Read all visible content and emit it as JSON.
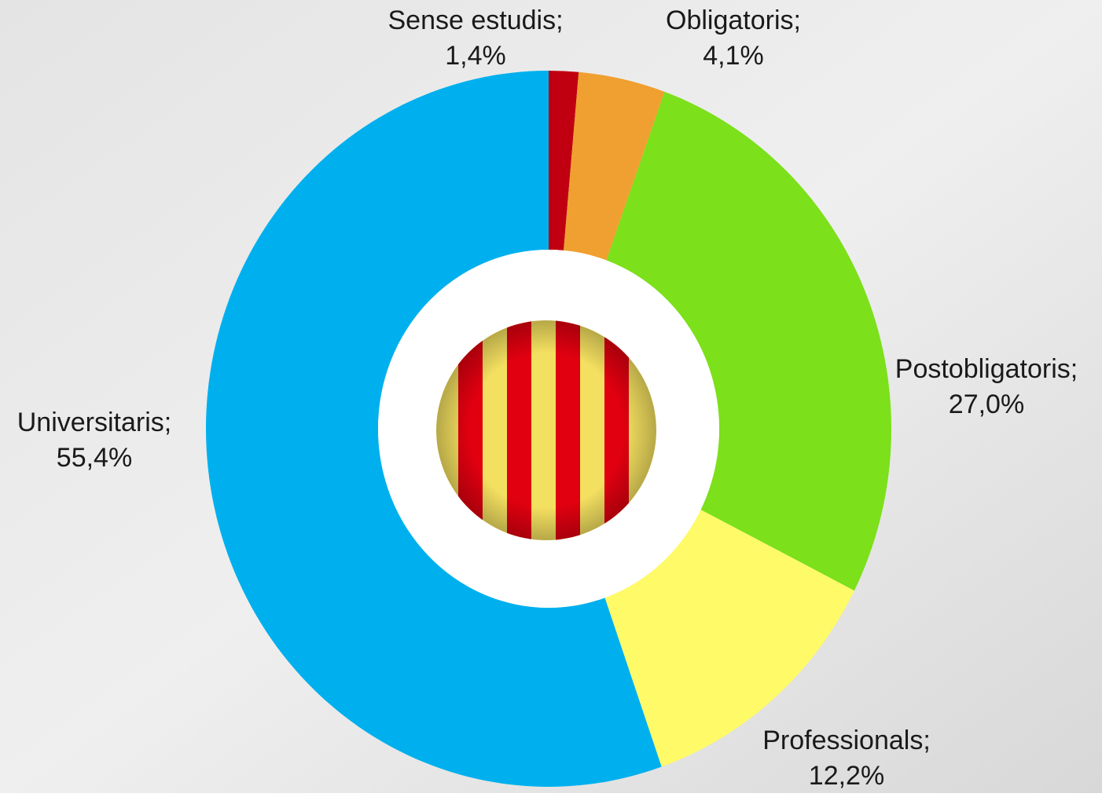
{
  "chart_data": {
    "type": "donut",
    "categories": [
      "Sense estudis;",
      "Obligatoris;",
      "Postobligatoris;",
      "Professionals;",
      "Universitaris;"
    ],
    "values": [
      1.4,
      4.1,
      27.0,
      12.2,
      55.4
    ],
    "value_labels": [
      "1,4%",
      "4,1%",
      "27,0%",
      "12,2%",
      "55,4%"
    ],
    "colors": [
      "#c00010",
      "#f0a030",
      "#7ce01a",
      "#fffa68",
      "#00b0ee"
    ]
  }
}
